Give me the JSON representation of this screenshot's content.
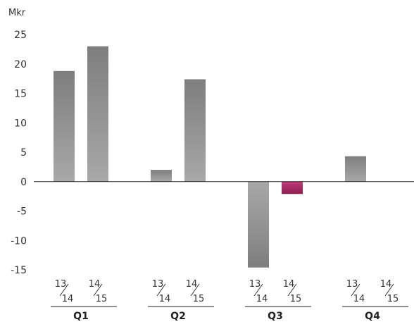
{
  "chart_data": {
    "type": "bar",
    "unit": "Mkr",
    "ylim": [
      -15,
      25
    ],
    "yticks": [
      -15,
      -10,
      -5,
      0,
      5,
      10,
      15,
      20,
      25
    ],
    "grid": false,
    "groups": [
      {
        "label": "Q1",
        "bars": [
          {
            "period_top": "13",
            "period_bottom": "14",
            "value": 18.8
          },
          {
            "period_top": "14",
            "period_bottom": "15",
            "value": 23.0
          }
        ]
      },
      {
        "label": "Q2",
        "bars": [
          {
            "period_top": "13",
            "period_bottom": "14",
            "value": 2.0
          },
          {
            "period_top": "14",
            "period_bottom": "15",
            "value": 17.4
          }
        ]
      },
      {
        "label": "Q3",
        "bars": [
          {
            "period_top": "13",
            "period_bottom": "14",
            "value": -14.6
          },
          {
            "period_top": "14",
            "period_bottom": "15",
            "value": -2.1
          }
        ]
      },
      {
        "label": "Q4",
        "bars": [
          {
            "period_top": "13",
            "period_bottom": "14",
            "value": 4.3
          },
          {
            "period_top": "14",
            "period_bottom": "15",
            "value": null
          }
        ]
      }
    ],
    "colors": {
      "bar_light": "#a8a8a8",
      "bar_dark": "#7e7e7e",
      "highlight_light": "#be3a7a",
      "highlight_dark": "#8e1e50",
      "axis": "#222222"
    },
    "highlight": {
      "group": 2,
      "bar": 1
    }
  }
}
